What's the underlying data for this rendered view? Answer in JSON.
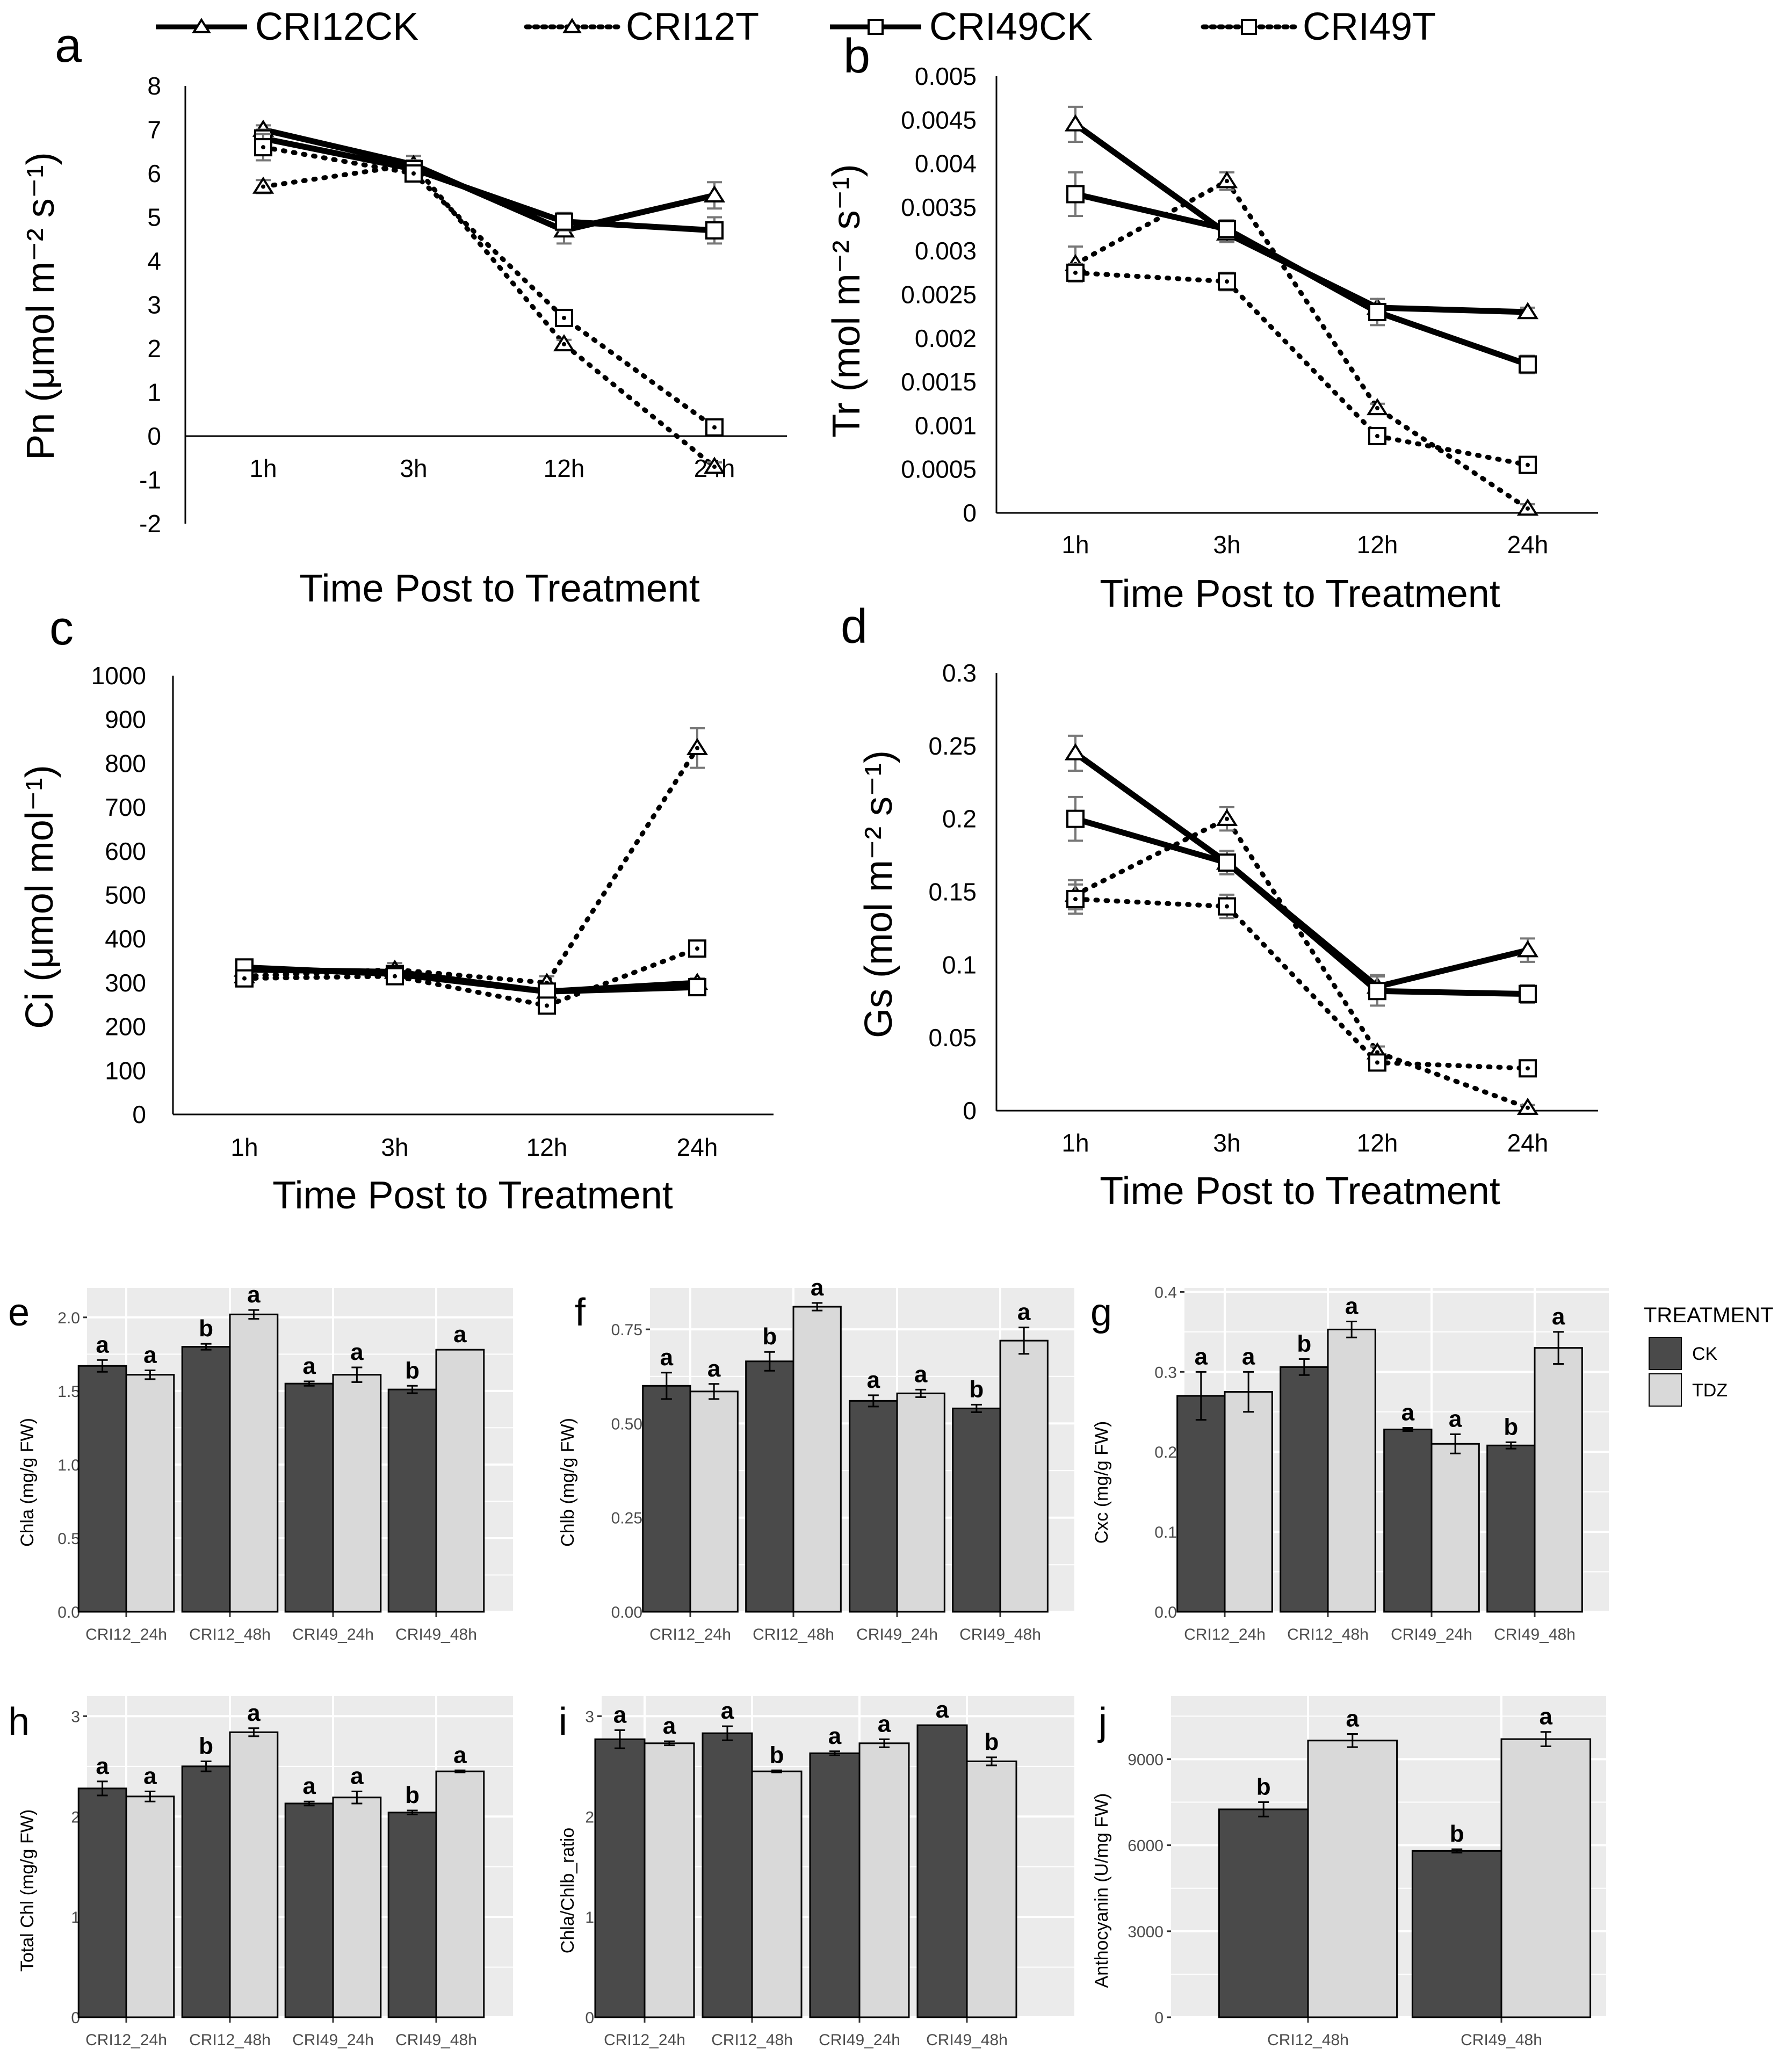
{
  "legend_top": {
    "entries": [
      {
        "label": "CRI12CK",
        "line": "solid",
        "marker": "triangle"
      },
      {
        "label": "CRI12T",
        "line": "dotted",
        "marker": "triangle"
      },
      {
        "label": "CRI49CK",
        "line": "solid",
        "marker": "square"
      },
      {
        "label": "CRI49T",
        "line": "dotted",
        "marker": "square"
      }
    ]
  },
  "legend_treatment": {
    "title": "TREATMENT",
    "items": [
      {
        "label": "CK",
        "color": "#4a4a4a"
      },
      {
        "label": "TDZ",
        "color": "#d9d9d9"
      }
    ]
  },
  "chart_data": [
    {
      "panel": "a",
      "type": "line",
      "xlabel": "Time Post to Treatment",
      "ylabel": "Pn (μmol m⁻² s⁻¹)",
      "categories": [
        "1h",
        "3h",
        "12h",
        "24h"
      ],
      "ylim": [
        -2,
        8
      ],
      "yticks": [
        "8",
        "7",
        "6",
        "5",
        "4",
        "3",
        "2",
        "1",
        "0",
        "-1",
        "-2"
      ],
      "series": [
        {
          "name": "CRI12CK",
          "values": [
            7.0,
            6.2,
            4.7,
            5.5
          ],
          "err": [
            0.1,
            0.2,
            0.3,
            0.3
          ]
        },
        {
          "name": "CRI12T",
          "values": [
            5.7,
            6.2,
            2.1,
            -0.7
          ],
          "err": [
            0.15,
            0.2,
            0.1,
            0.1
          ]
        },
        {
          "name": "CRI49CK",
          "values": [
            6.8,
            6.1,
            4.9,
            4.7
          ],
          "err": [
            0.2,
            0.2,
            0.2,
            0.3
          ]
        },
        {
          "name": "CRI49T",
          "values": [
            6.6,
            6.0,
            2.7,
            0.2
          ],
          "err": [
            0.3,
            0.15,
            0.1,
            0.1
          ]
        }
      ]
    },
    {
      "panel": "b",
      "type": "line",
      "xlabel": "Time Post to Treatment",
      "ylabel": "Tr (mol m⁻² s⁻¹)",
      "categories": [
        "1h",
        "3h",
        "12h",
        "24h"
      ],
      "ylim": [
        0,
        0.005
      ],
      "yticks": [
        "0.005",
        "0.0045",
        "0.004",
        "0.0035",
        "0.003",
        "0.0025",
        "0.002",
        "0.0015",
        "0.001",
        "0.0005",
        "0"
      ],
      "series": [
        {
          "name": "CRI12CK",
          "values": [
            0.00445,
            0.0032,
            0.00235,
            0.0023
          ],
          "err": [
            0.0002,
            0.0001,
            0.0001,
            5e-05
          ]
        },
        {
          "name": "CRI12T",
          "values": [
            0.00285,
            0.0038,
            0.0012,
            5e-05
          ],
          "err": [
            0.0002,
            0.0001,
            5e-05,
            5e-05
          ]
        },
        {
          "name": "CRI49CK",
          "values": [
            0.00365,
            0.00325,
            0.0023,
            0.0017
          ],
          "err": [
            0.00025,
            0.0001,
            0.00015,
            0.0001
          ]
        },
        {
          "name": "CRI49T",
          "values": [
            0.00275,
            0.00265,
            0.00088,
            0.00055
          ],
          "err": [
            0.0001,
            0.0001,
            5e-05,
            5e-05
          ]
        }
      ]
    },
    {
      "panel": "c",
      "type": "line",
      "xlabel": "Time Post to Treatment",
      "ylabel": "Ci (μmol mol⁻¹)",
      "categories": [
        "1h",
        "3h",
        "12h",
        "24h"
      ],
      "ylim": [
        0,
        1000
      ],
      "yticks": [
        "1000",
        "900",
        "800",
        "700",
        "600",
        "500",
        "400",
        "300",
        "200",
        "100",
        "0"
      ],
      "series": [
        {
          "name": "CRI12CK",
          "values": [
            330,
            325,
            280,
            300
          ],
          "err": [
            10,
            10,
            10,
            10
          ]
        },
        {
          "name": "CRI12T",
          "values": [
            315,
            330,
            300,
            835
          ],
          "err": [
            10,
            15,
            15,
            45
          ]
        },
        {
          "name": "CRI49CK",
          "values": [
            335,
            320,
            280,
            290
          ],
          "err": [
            10,
            10,
            10,
            10
          ]
        },
        {
          "name": "CRI49T",
          "values": [
            310,
            315,
            248,
            378
          ],
          "err": [
            10,
            10,
            10,
            15
          ]
        }
      ]
    },
    {
      "panel": "d",
      "type": "line",
      "xlabel": "Time Post to Treatment",
      "ylabel": "Gs (mol m⁻² s⁻¹)",
      "categories": [
        "1h",
        "3h",
        "12h",
        "24h"
      ],
      "ylim": [
        0,
        0.3
      ],
      "yticks": [
        "0.3",
        "0.25",
        "0.2",
        "0.15",
        "0.1",
        "0.05",
        "0"
      ],
      "series": [
        {
          "name": "CRI12CK",
          "values": [
            0.245,
            0.17,
            0.085,
            0.11
          ],
          "err": [
            0.012,
            0.008,
            0.008,
            0.008
          ]
        },
        {
          "name": "CRI12T",
          "values": [
            0.148,
            0.2,
            0.04,
            0.002
          ],
          "err": [
            0.01,
            0.008,
            0.004,
            0.002
          ]
        },
        {
          "name": "CRI49CK",
          "values": [
            0.2,
            0.17,
            0.082,
            0.08
          ],
          "err": [
            0.015,
            0.008,
            0.01,
            0.006
          ]
        },
        {
          "name": "CRI49T",
          "values": [
            0.145,
            0.14,
            0.033,
            0.029
          ],
          "err": [
            0.01,
            0.008,
            0.004,
            0.004
          ]
        }
      ]
    },
    {
      "panel": "e",
      "type": "bar",
      "ylabel": "Chla (mg/g FW)",
      "categories": [
        "CRI12_24h",
        "CRI12_48h",
        "CRI49_24h",
        "CRI49_48h"
      ],
      "ylim": [
        0,
        2.2
      ],
      "yticks": [
        0,
        0.5,
        1.0,
        1.5,
        2.0
      ],
      "ytick_labels": [
        "0.0",
        "0.5",
        "1.0",
        "1.5",
        "2.0"
      ],
      "series": [
        {
          "name": "CK",
          "values": [
            1.67,
            1.8,
            1.55,
            1.51
          ],
          "err": [
            0.04,
            0.02,
            0.015,
            0.025
          ],
          "labels": [
            "a",
            "b",
            "a",
            "b"
          ]
        },
        {
          "name": "TDZ",
          "values": [
            1.61,
            2.02,
            1.61,
            1.78
          ],
          "err": [
            0.03,
            0.03,
            0.05,
            0
          ],
          "labels": [
            "a",
            "a",
            "a",
            "a"
          ]
        }
      ]
    },
    {
      "panel": "f",
      "type": "bar",
      "ylabel": "Chlb (mg/g FW)",
      "categories": [
        "CRI12_24h",
        "CRI12_48h",
        "CRI49_24h",
        "CRI49_48h"
      ],
      "ylim": [
        0,
        0.86
      ],
      "yticks": [
        0,
        0.25,
        0.5,
        0.75
      ],
      "ytick_labels": [
        "0.00",
        "0.25",
        "0.50",
        "0.75"
      ],
      "series": [
        {
          "name": "CK",
          "values": [
            0.6,
            0.665,
            0.56,
            0.54
          ],
          "err": [
            0.035,
            0.025,
            0.015,
            0.01
          ],
          "labels": [
            "a",
            "b",
            "a",
            "b"
          ]
        },
        {
          "name": "TDZ",
          "values": [
            0.585,
            0.81,
            0.58,
            0.72
          ],
          "err": [
            0.02,
            0.01,
            0.01,
            0.035
          ],
          "labels": [
            "a",
            "a",
            "a",
            "a"
          ]
        }
      ]
    },
    {
      "panel": "g",
      "type": "bar",
      "ylabel": "Cxc (mg/g FW)",
      "categories": [
        "CRI12_24h",
        "CRI12_48h",
        "CRI49_24h",
        "CRI49_48h"
      ],
      "ylim": [
        0,
        0.405
      ],
      "yticks": [
        0,
        0.1,
        0.2,
        0.3,
        0.4
      ],
      "ytick_labels": [
        "0.0",
        "0.1",
        "0.2",
        "0.3",
        "0.4"
      ],
      "series": [
        {
          "name": "CK",
          "values": [
            0.27,
            0.306,
            0.228,
            0.208
          ],
          "err": [
            0.03,
            0.01,
            0.002,
            0.004
          ],
          "labels": [
            "a",
            "b",
            "a",
            "b"
          ]
        },
        {
          "name": "TDZ",
          "values": [
            0.275,
            0.353,
            0.21,
            0.33
          ],
          "err": [
            0.025,
            0.01,
            0.012,
            0.02
          ],
          "labels": [
            "a",
            "a",
            "a",
            "a"
          ]
        }
      ]
    },
    {
      "panel": "h",
      "type": "bar",
      "ylabel": "Total Chl (mg/g FW)",
      "categories": [
        "CRI12_24h",
        "CRI12_48h",
        "CRI49_24h",
        "CRI49_48h"
      ],
      "ylim": [
        0,
        3.2
      ],
      "yticks": [
        0,
        1,
        2,
        3
      ],
      "ytick_labels": [
        "0",
        "1",
        "2",
        "3"
      ],
      "series": [
        {
          "name": "CK",
          "values": [
            2.28,
            2.5,
            2.13,
            2.04
          ],
          "err": [
            0.07,
            0.05,
            0.02,
            0.02
          ],
          "labels": [
            "a",
            "b",
            "a",
            "b"
          ]
        },
        {
          "name": "TDZ",
          "values": [
            2.2,
            2.84,
            2.19,
            2.45
          ],
          "err": [
            0.05,
            0.04,
            0.06,
            0.01
          ],
          "labels": [
            "a",
            "a",
            "a",
            "a"
          ]
        }
      ]
    },
    {
      "panel": "i",
      "type": "bar",
      "ylabel": "Chla/Chlb_ratio",
      "categories": [
        "CRI12_24h",
        "CRI12_48h",
        "CRI49_24h",
        "CRI49_48h"
      ],
      "ylim": [
        0,
        3.2
      ],
      "yticks": [
        0,
        1,
        2,
        3
      ],
      "ytick_labels": [
        "0",
        "1",
        "2",
        "3"
      ],
      "series": [
        {
          "name": "CK",
          "values": [
            2.77,
            2.83,
            2.63,
            2.91
          ],
          "err": [
            0.09,
            0.07,
            0.02,
            0
          ],
          "labels": [
            "a",
            "a",
            "a",
            "a"
          ]
        },
        {
          "name": "TDZ",
          "values": [
            2.73,
            2.45,
            2.73,
            2.55
          ],
          "err": [
            0.02,
            0.01,
            0.04,
            0.04
          ],
          "labels": [
            "a",
            "b",
            "a",
            "b"
          ]
        }
      ]
    },
    {
      "panel": "j",
      "type": "bar",
      "ylabel": "Anthocyanin (U/mg FW)",
      "categories": [
        "CRI12_48h",
        "CRI49_48h"
      ],
      "ylim": [
        0,
        11200
      ],
      "yticks": [
        0,
        3000,
        6000,
        9000
      ],
      "ytick_labels": [
        "0",
        "3000",
        "6000",
        "9000"
      ],
      "series": [
        {
          "name": "CK",
          "values": [
            7250,
            5800
          ],
          "err": [
            250,
            60
          ],
          "labels": [
            "b",
            "b"
          ]
        },
        {
          "name": "TDZ",
          "values": [
            9650,
            9700
          ],
          "err": [
            230,
            250
          ],
          "labels": [
            "a",
            "a"
          ]
        }
      ]
    }
  ]
}
